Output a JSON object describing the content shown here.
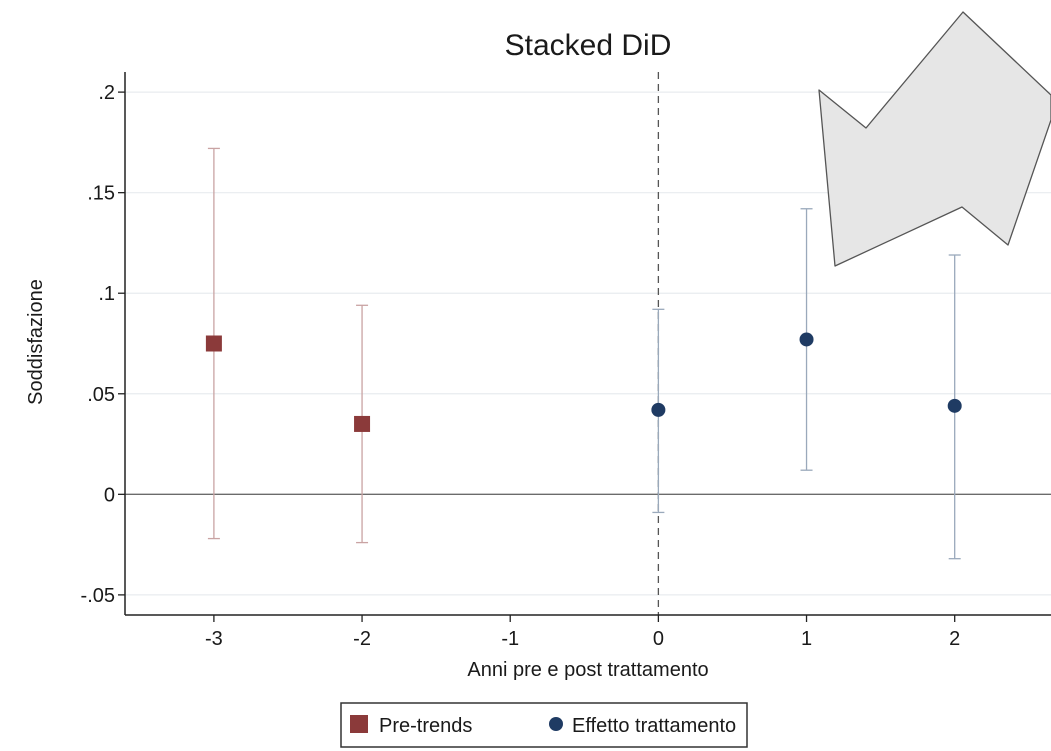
{
  "chart_data": {
    "type": "scatter",
    "title": "Stacked DiD",
    "xlabel": "Anni pre e post trattamento",
    "ylabel": "Soddisfazione",
    "xlim": [
      -3.6,
      2.65
    ],
    "ylim": [
      -0.06,
      0.21
    ],
    "x_ticks": [
      -3,
      -2,
      -1,
      0,
      1,
      2
    ],
    "x_tick_labels": [
      "-3",
      "-2",
      "-1",
      "0",
      "1",
      "2"
    ],
    "y_ticks": [
      -0.05,
      0,
      0.05,
      0.1,
      0.15,
      0.2
    ],
    "y_tick_labels": [
      "-.05",
      "0",
      ".05",
      ".1",
      ".15",
      ".2"
    ],
    "grid": true,
    "reference_lines": {
      "horizontal": 0,
      "vertical_dashed": 0
    },
    "legend_position": "bottom",
    "series": [
      {
        "name": "Pre-trends",
        "marker": "square",
        "color": "#8b3a3a",
        "points": [
          {
            "x": -3,
            "y": 0.075,
            "ci_low": -0.022,
            "ci_high": 0.172
          },
          {
            "x": -2,
            "y": 0.035,
            "ci_low": -0.024,
            "ci_high": 0.094
          }
        ]
      },
      {
        "name": "Effetto trattamento",
        "marker": "circle",
        "color": "#1f3b63",
        "points": [
          {
            "x": 0,
            "y": 0.042,
            "ci_low": -0.009,
            "ci_high": 0.092
          },
          {
            "x": 1,
            "y": 0.077,
            "ci_low": 0.012,
            "ci_high": 0.142
          },
          {
            "x": 2,
            "y": 0.044,
            "ci_low": -0.032,
            "ci_high": 0.119
          }
        ]
      }
    ]
  },
  "annotation": {
    "shape": "arrow",
    "direction": "down-left",
    "fill": "#e6e6e6",
    "stroke": "#555555"
  }
}
